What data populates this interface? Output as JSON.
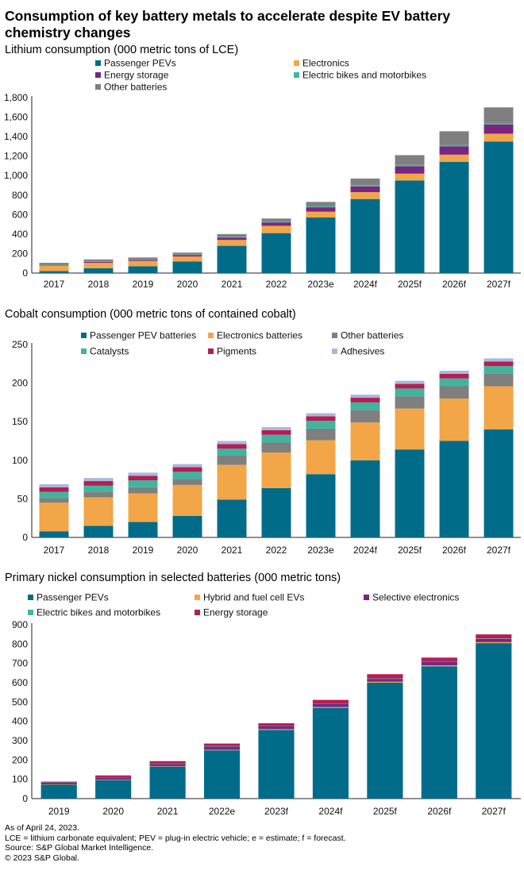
{
  "page": {
    "title": "Consumption of key battery metals to accelerate despite EV battery chemistry changes"
  },
  "footnotes": {
    "as_of": "As of April 24, 2023.",
    "abbrev": "LCE = lithium carbonate equivalent; PEV = plug-in electric vehicle; e = estimate; f = forecast.",
    "source": "Source: S&P Global Market Intelligence.",
    "copyright": "© 2023 S&P Global."
  },
  "chart_data": [
    {
      "type": "bar",
      "stacked": true,
      "title": "Lithium consumption (000 metric tons of LCE)",
      "categories": [
        "2017",
        "2018",
        "2019",
        "2020",
        "2021",
        "2022",
        "2023e",
        "2024f",
        "2025f",
        "2026f",
        "2027f"
      ],
      "ylim": [
        0,
        1800
      ],
      "yticks": [
        0,
        200,
        400,
        600,
        800,
        1000,
        1200,
        1400,
        1600,
        1800
      ],
      "ytick_labels": [
        "0",
        "200",
        "400",
        "600",
        "800",
        "1,000",
        "1,200",
        "1,400",
        "1,600",
        "1,800"
      ],
      "grid": false,
      "series": [
        {
          "name": "Passenger PEVs",
          "color": "#006C8A",
          "values": [
            20,
            50,
            70,
            120,
            280,
            410,
            570,
            760,
            950,
            1140,
            1350
          ]
        },
        {
          "name": "Electronics",
          "color": "#F2A647",
          "values": [
            55,
            55,
            55,
            50,
            60,
            75,
            60,
            70,
            70,
            75,
            80
          ]
        },
        {
          "name": "Energy storage",
          "color": "#7B2583",
          "values": [
            5,
            10,
            10,
            15,
            25,
            35,
            45,
            60,
            75,
            85,
            95
          ]
        },
        {
          "name": "Electric bikes and motorbikes",
          "color": "#3FB59E",
          "values": [
            5,
            5,
            5,
            5,
            8,
            10,
            10,
            12,
            15,
            15,
            15
          ]
        },
        {
          "name": "Other batteries",
          "color": "#7F7F7F",
          "values": [
            20,
            20,
            20,
            20,
            27,
            30,
            45,
            68,
            100,
            140,
            160
          ]
        }
      ]
    },
    {
      "type": "bar",
      "stacked": true,
      "title": "Cobalt consumption (000 metric tons of contained cobalt)",
      "categories": [
        "2017",
        "2018",
        "2019",
        "2020",
        "2021",
        "2022",
        "2023e",
        "2024f",
        "2025f",
        "2026f",
        "2027f"
      ],
      "ylim": [
        0,
        250
      ],
      "yticks": [
        0,
        50,
        100,
        150,
        200,
        250
      ],
      "ytick_labels": [
        "0",
        "50",
        "100",
        "150",
        "200",
        "250"
      ],
      "grid": false,
      "series": [
        {
          "name": "Passenger PEV batteries",
          "color": "#006C8A",
          "values": [
            8,
            15,
            20,
            28,
            49,
            64,
            82,
            100,
            114,
            125,
            140
          ]
        },
        {
          "name": "Electronics batteries",
          "color": "#F2A647",
          "values": [
            37,
            37,
            37,
            40,
            45,
            46,
            44,
            49,
            53,
            55,
            56
          ]
        },
        {
          "name": "Other batteries",
          "color": "#7F7F7F",
          "values": [
            6,
            7,
            8,
            8,
            12,
            13,
            15,
            16,
            16,
            16,
            16
          ]
        },
        {
          "name": "Catalysts",
          "color": "#3FB59E",
          "values": [
            8,
            8,
            9,
            9,
            9,
            10,
            10,
            10,
            10,
            10,
            10
          ]
        },
        {
          "name": "Pigments",
          "color": "#B51E54",
          "values": [
            6,
            6,
            6,
            6,
            6,
            6,
            6,
            6,
            6,
            6,
            6
          ]
        },
        {
          "name": "Adhesives",
          "color": "#A9B8DB",
          "values": [
            4,
            4,
            4,
            4,
            4,
            4,
            4,
            4,
            4,
            4,
            4
          ]
        }
      ]
    },
    {
      "type": "bar",
      "stacked": true,
      "title": "Primary nickel consumption in selected batteries (000 metric tons)",
      "categories": [
        "2019",
        "2020",
        "2021",
        "2022e",
        "2023f",
        "2024f",
        "2025f",
        "2026f",
        "2027f"
      ],
      "ylim": [
        0,
        900
      ],
      "yticks": [
        0,
        100,
        200,
        300,
        400,
        500,
        600,
        700,
        800,
        900
      ],
      "ytick_labels": [
        "0",
        "100",
        "200",
        "300",
        "400",
        "500",
        "600",
        "700",
        "800",
        "900"
      ],
      "grid": false,
      "series": [
        {
          "name": "Passenger PEVs",
          "color": "#006C8A",
          "values": [
            72,
            95,
            165,
            250,
            355,
            470,
            600,
            685,
            805
          ]
        },
        {
          "name": "Hybrid and fuel cell EVs",
          "color": "#F2A647",
          "values": [
            2,
            2,
            2,
            3,
            4,
            4,
            5,
            5,
            5
          ]
        },
        {
          "name": "Selective electronics",
          "color": "#7B2583",
          "values": [
            8,
            12,
            12,
            17,
            15,
            17,
            15,
            17,
            17
          ]
        },
        {
          "name": "Electric bikes and motorbikes",
          "color": "#3FB59E",
          "values": [
            2,
            2,
            2,
            2,
            2,
            2,
            2,
            2,
            2
          ]
        },
        {
          "name": "Energy storage",
          "color": "#B51E54",
          "values": [
            4,
            9,
            13,
            13,
            14,
            18,
            22,
            21,
            21
          ]
        }
      ]
    }
  ]
}
